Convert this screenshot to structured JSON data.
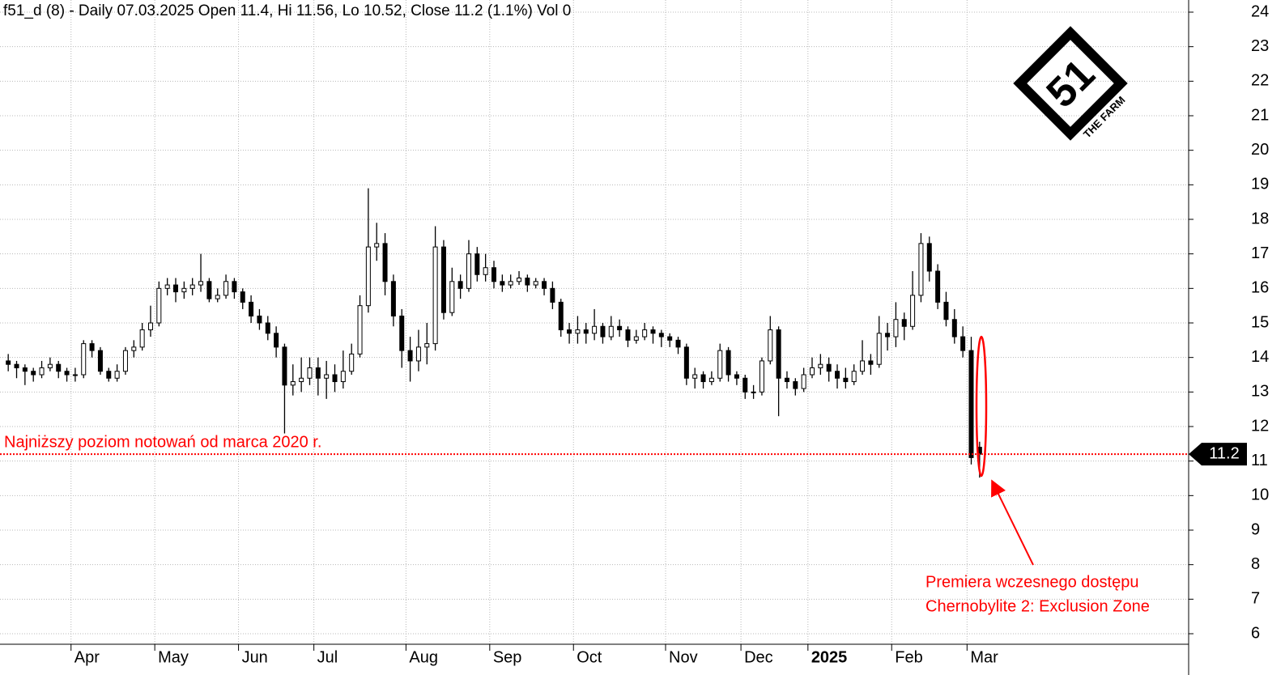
{
  "chart_data": {
    "type": "candlestick",
    "title": "f51_d (8) - Daily 07.03.2025 Open 11.4, Hi 11.56, Lo 10.52, Close 11.2 (1.1%) Vol 0",
    "categories": [
      null,
      null,
      null,
      null,
      null,
      null,
      null,
      null,
      "Apr",
      null,
      null,
      null,
      null,
      null,
      null,
      null,
      null,
      null,
      "May",
      null,
      null,
      null,
      null,
      null,
      null,
      null,
      null,
      null,
      "Jun",
      null,
      null,
      null,
      null,
      null,
      null,
      null,
      null,
      "Jul",
      null,
      null,
      null,
      null,
      null,
      null,
      null,
      null,
      null,
      null,
      "Aug",
      null,
      null,
      null,
      null,
      null,
      null,
      null,
      null,
      null,
      "Sep",
      null,
      null,
      null,
      null,
      null,
      null,
      null,
      null,
      null,
      "Oct",
      null,
      null,
      null,
      null,
      null,
      null,
      null,
      null,
      null,
      null,
      "Nov",
      null,
      null,
      null,
      null,
      null,
      null,
      null,
      null,
      "Dec",
      null,
      null,
      null,
      null,
      null,
      null,
      null,
      "2025",
      null,
      null,
      null,
      null,
      null,
      null,
      null,
      null,
      null,
      "Feb",
      null,
      null,
      null,
      null,
      null,
      null,
      null,
      null,
      "Mar",
      null
    ],
    "candles": [
      [
        13.9,
        14.1,
        13.6,
        13.8
      ],
      [
        13.8,
        13.9,
        13.4,
        13.7
      ],
      [
        13.7,
        13.8,
        13.2,
        13.6
      ],
      [
        13.6,
        13.7,
        13.3,
        13.5
      ],
      [
        13.5,
        13.9,
        13.4,
        13.7
      ],
      [
        13.7,
        14.0,
        13.6,
        13.8
      ],
      [
        13.8,
        13.9,
        13.4,
        13.6
      ],
      [
        13.6,
        13.7,
        13.3,
        13.5
      ],
      [
        13.5,
        13.7,
        13.3,
        13.5
      ],
      [
        13.5,
        14.5,
        13.4,
        14.4
      ],
      [
        14.4,
        14.5,
        14.0,
        14.2
      ],
      [
        14.2,
        14.3,
        13.5,
        13.6
      ],
      [
        13.6,
        13.7,
        13.3,
        13.4
      ],
      [
        13.4,
        13.8,
        13.3,
        13.6
      ],
      [
        13.6,
        14.3,
        13.5,
        14.2
      ],
      [
        14.2,
        14.5,
        14.0,
        14.3
      ],
      [
        14.3,
        15.0,
        14.2,
        14.8
      ],
      [
        14.8,
        15.5,
        14.6,
        15.0
      ],
      [
        15.0,
        16.2,
        14.9,
        16.0
      ],
      [
        16.0,
        16.3,
        15.8,
        16.1
      ],
      [
        16.1,
        16.3,
        15.6,
        15.9
      ],
      [
        15.9,
        16.2,
        15.7,
        16.0
      ],
      [
        16.0,
        16.3,
        15.8,
        16.1
      ],
      [
        16.1,
        17.0,
        15.9,
        16.2
      ],
      [
        16.2,
        16.3,
        15.6,
        15.7
      ],
      [
        15.7,
        16.0,
        15.6,
        15.8
      ],
      [
        15.8,
        16.4,
        15.7,
        16.2
      ],
      [
        16.2,
        16.3,
        15.7,
        15.9
      ],
      [
        15.9,
        16.0,
        15.4,
        15.6
      ],
      [
        15.6,
        15.8,
        15.0,
        15.2
      ],
      [
        15.2,
        15.4,
        14.8,
        15.0
      ],
      [
        15.0,
        15.2,
        14.5,
        14.7
      ],
      [
        14.7,
        14.9,
        14.0,
        14.3
      ],
      [
        14.3,
        14.4,
        11.8,
        13.2
      ],
      [
        13.2,
        13.8,
        12.9,
        13.3
      ],
      [
        13.3,
        14.0,
        13.0,
        13.4
      ],
      [
        13.4,
        14.0,
        13.2,
        13.7
      ],
      [
        13.7,
        14.0,
        12.9,
        13.4
      ],
      [
        13.4,
        13.9,
        12.8,
        13.5
      ],
      [
        13.5,
        13.8,
        13.0,
        13.3
      ],
      [
        13.3,
        14.2,
        13.1,
        13.6
      ],
      [
        13.6,
        14.4,
        13.5,
        14.1
      ],
      [
        14.1,
        15.8,
        14.0,
        15.5
      ],
      [
        15.5,
        18.9,
        15.3,
        17.2
      ],
      [
        17.2,
        17.9,
        16.8,
        17.3
      ],
      [
        17.3,
        17.6,
        15.8,
        16.2
      ],
      [
        16.2,
        16.4,
        14.9,
        15.2
      ],
      [
        15.2,
        15.4,
        13.7,
        14.2
      ],
      [
        14.2,
        14.6,
        13.3,
        13.9
      ],
      [
        13.9,
        14.8,
        13.6,
        14.3
      ],
      [
        14.3,
        15.0,
        13.8,
        14.4
      ],
      [
        14.4,
        17.8,
        14.2,
        17.2
      ],
      [
        17.2,
        17.4,
        15.1,
        15.3
      ],
      [
        15.3,
        16.6,
        15.2,
        16.2
      ],
      [
        16.2,
        16.4,
        15.7,
        16.0
      ],
      [
        16.0,
        17.4,
        15.9,
        17.0
      ],
      [
        17.0,
        17.2,
        16.2,
        16.4
      ],
      [
        16.4,
        17.0,
        16.2,
        16.6
      ],
      [
        16.6,
        16.8,
        16.0,
        16.2
      ],
      [
        16.2,
        16.4,
        15.9,
        16.1
      ],
      [
        16.1,
        16.4,
        16.0,
        16.2
      ],
      [
        16.2,
        16.5,
        16.1,
        16.3
      ],
      [
        16.3,
        16.4,
        15.9,
        16.1
      ],
      [
        16.1,
        16.3,
        16.0,
        16.2
      ],
      [
        16.2,
        16.3,
        15.8,
        16.0
      ],
      [
        16.0,
        16.2,
        15.4,
        15.6
      ],
      [
        15.6,
        15.7,
        14.6,
        14.8
      ],
      [
        14.8,
        15.0,
        14.4,
        14.7
      ],
      [
        14.7,
        15.2,
        14.4,
        14.8
      ],
      [
        14.8,
        15.0,
        14.4,
        14.7
      ],
      [
        14.7,
        15.4,
        14.5,
        14.9
      ],
      [
        14.9,
        15.0,
        14.4,
        14.6
      ],
      [
        14.6,
        15.2,
        14.5,
        14.9
      ],
      [
        14.9,
        15.1,
        14.6,
        14.8
      ],
      [
        14.8,
        14.9,
        14.3,
        14.5
      ],
      [
        14.5,
        14.8,
        14.4,
        14.6
      ],
      [
        14.6,
        15.0,
        14.5,
        14.8
      ],
      [
        14.8,
        14.9,
        14.4,
        14.7
      ],
      [
        14.7,
        14.8,
        14.3,
        14.6
      ],
      [
        14.6,
        14.7,
        14.3,
        14.5
      ],
      [
        14.5,
        14.6,
        14.1,
        14.3
      ],
      [
        14.3,
        14.4,
        13.2,
        13.4
      ],
      [
        13.4,
        13.7,
        13.1,
        13.5
      ],
      [
        13.5,
        13.6,
        13.1,
        13.3
      ],
      [
        13.3,
        13.6,
        13.2,
        13.4
      ],
      [
        13.4,
        14.4,
        13.3,
        14.2
      ],
      [
        14.2,
        14.3,
        13.3,
        13.5
      ],
      [
        13.5,
        13.6,
        13.2,
        13.4
      ],
      [
        13.4,
        13.5,
        12.8,
        13.0
      ],
      [
        13.0,
        13.2,
        12.8,
        13.0
      ],
      [
        13.0,
        14.0,
        12.9,
        13.9
      ],
      [
        13.9,
        15.2,
        13.8,
        14.8
      ],
      [
        14.8,
        14.9,
        12.3,
        13.4
      ],
      [
        13.4,
        13.6,
        13.1,
        13.3
      ],
      [
        13.3,
        13.4,
        12.9,
        13.1
      ],
      [
        13.1,
        13.7,
        13.0,
        13.5
      ],
      [
        13.5,
        14.0,
        13.4,
        13.7
      ],
      [
        13.7,
        14.1,
        13.5,
        13.8
      ],
      [
        13.8,
        14.0,
        13.3,
        13.6
      ],
      [
        13.6,
        13.8,
        13.1,
        13.4
      ],
      [
        13.4,
        13.7,
        13.1,
        13.3
      ],
      [
        13.3,
        13.8,
        13.2,
        13.6
      ],
      [
        13.6,
        14.5,
        13.5,
        13.9
      ],
      [
        13.9,
        14.1,
        13.5,
        13.8
      ],
      [
        13.8,
        15.2,
        13.7,
        14.7
      ],
      [
        14.7,
        15.0,
        14.2,
        14.6
      ],
      [
        14.6,
        15.6,
        14.3,
        15.1
      ],
      [
        15.1,
        15.3,
        14.5,
        14.9
      ],
      [
        14.9,
        16.5,
        14.8,
        15.8
      ],
      [
        15.8,
        17.6,
        15.6,
        17.3
      ],
      [
        17.3,
        17.5,
        16.2,
        16.5
      ],
      [
        16.5,
        16.7,
        15.4,
        15.6
      ],
      [
        15.6,
        15.9,
        14.9,
        15.1
      ],
      [
        15.1,
        15.4,
        14.4,
        14.6
      ],
      [
        14.6,
        14.9,
        14.0,
        14.2
      ],
      [
        14.2,
        14.6,
        10.9,
        11.1
      ],
      [
        11.4,
        11.56,
        10.52,
        11.2
      ]
    ],
    "ylim": [
      6,
      24
    ],
    "yticks": [
      6,
      7,
      8,
      9,
      10,
      11,
      12,
      13,
      14,
      15,
      16,
      17,
      18,
      19,
      20,
      21,
      22,
      23,
      24
    ],
    "grid": true,
    "color": "#000000",
    "reference_line": {
      "value": 11.2,
      "label": "Najniższy poziom notowań od marca 2020 r.",
      "color": "#ff0000"
    },
    "last_price": 11.2,
    "annotation": [
      "Premiera wczesnego dostępu",
      "Chernobylite 2: Exclusion Zone"
    ],
    "logo": {
      "number": "51",
      "caption": "THE FARM"
    }
  }
}
